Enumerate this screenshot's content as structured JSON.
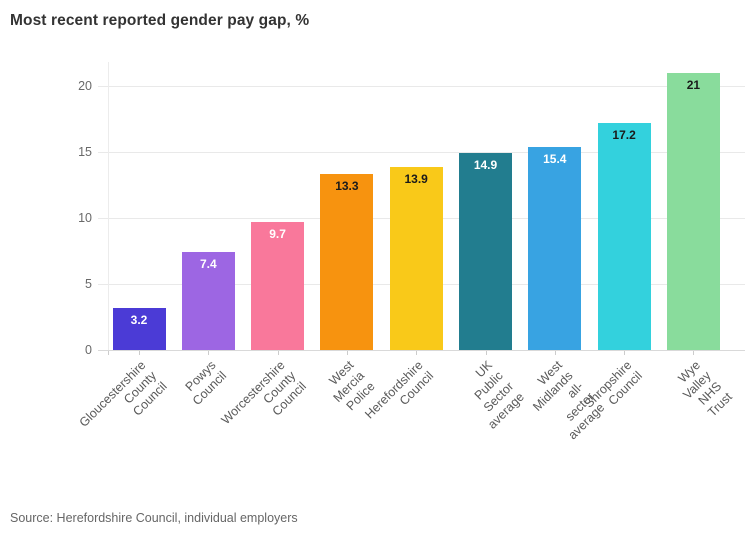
{
  "title": "Most recent reported gender pay gap, %",
  "source": "Source: Herefordshire Council, individual employers",
  "chart_data": {
    "type": "bar",
    "title": "Most recent reported gender pay gap, %",
    "categories": [
      "Gloucestershire County Council",
      "Powys Council",
      "Worcestershire County Council",
      "West Mercia Police",
      "Herefordshire Council",
      "UK Public Sector average",
      "West Midlands all-sector average",
      "Shropshire Council",
      "Wye Valley NHS Trust"
    ],
    "tick_labels": [
      "Gloucestershire County\nCouncil",
      "Powys Council",
      "Worcestershire County\nCouncil",
      "West Mercia Police",
      "Herefordshire Council",
      "UK Public Sector average",
      "West Midlands all-sector\naverage",
      "Shropshire Council",
      "Wye Valley NHS Trust"
    ],
    "values": [
      3.2,
      7.4,
      9.7,
      13.3,
      13.9,
      14.9,
      15.4,
      17.2,
      21
    ],
    "value_labels": [
      "3.2",
      "7.4",
      "9.7",
      "13.3",
      "13.9",
      "14.9",
      "15.4",
      "17.2",
      "21"
    ],
    "bar_colors": [
      "#4b3bd6",
      "#9d66e3",
      "#f9789b",
      "#f7930f",
      "#f9c919",
      "#227d8f",
      "#38a3e2",
      "#33d1dd",
      "#89dc9c"
    ],
    "value_label_colors": [
      "#ffffff",
      "#ffffff",
      "#ffffff",
      "#1a1a1a",
      "#1a1a1a",
      "#ffffff",
      "#ffffff",
      "#1a1a1a",
      "#1a1a1a"
    ],
    "y_ticks": [
      0,
      5,
      10,
      15,
      20
    ],
    "ylim": [
      0,
      21.8
    ],
    "xlabel": "",
    "ylabel": "",
    "grid": "horizontal",
    "legend": "none",
    "source": "Source: Herefordshire Council, individual employers"
  }
}
